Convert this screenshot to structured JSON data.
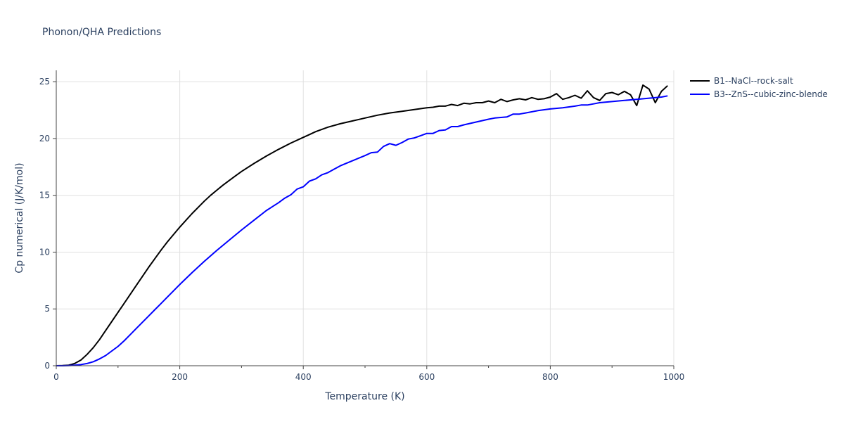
{
  "chart_data": {
    "type": "line",
    "title": "Phonon/QHA Predictions",
    "xlabel": "Temperature (K)",
    "ylabel": "Cp numerical (J/K/mol)",
    "xlim": [
      0,
      1000
    ],
    "ylim": [
      0,
      26
    ],
    "xticks": [
      0,
      200,
      400,
      600,
      800,
      1000
    ],
    "yticks": [
      0,
      5,
      10,
      15,
      20,
      25
    ],
    "grid": true,
    "legend_position": "top-right outside",
    "series": [
      {
        "name": "B1--NaCl--rock-salt",
        "color": "#000000",
        "x": [
          0,
          10,
          20,
          30,
          40,
          50,
          60,
          70,
          80,
          90,
          100,
          110,
          120,
          130,
          140,
          150,
          160,
          170,
          180,
          190,
          200,
          210,
          220,
          230,
          240,
          250,
          260,
          270,
          280,
          290,
          300,
          320,
          340,
          360,
          380,
          400,
          410,
          420,
          440,
          460,
          480,
          500,
          520,
          540,
          560,
          580,
          600,
          610,
          620,
          630,
          640,
          650,
          660,
          670,
          680,
          690,
          700,
          710,
          720,
          730,
          740,
          750,
          760,
          770,
          780,
          790,
          800,
          810,
          820,
          830,
          840,
          850,
          860,
          870,
          880,
          890,
          900,
          910,
          920,
          930,
          940,
          950,
          960,
          970,
          980,
          990
        ],
        "y": [
          0,
          0.02,
          0.05,
          0.2,
          0.5,
          1.0,
          1.6,
          2.3,
          3.1,
          3.9,
          4.7,
          5.5,
          6.3,
          7.1,
          7.9,
          8.7,
          9.45,
          10.2,
          10.9,
          11.55,
          12.2,
          12.8,
          13.4,
          13.95,
          14.5,
          15.0,
          15.45,
          15.9,
          16.3,
          16.7,
          17.1,
          17.8,
          18.45,
          19.05,
          19.6,
          20.1,
          20.35,
          20.6,
          21.0,
          21.3,
          21.55,
          21.8,
          22.05,
          22.25,
          22.4,
          22.55,
          22.7,
          22.75,
          22.85,
          22.85,
          23.0,
          22.9,
          23.1,
          23.05,
          23.15,
          23.15,
          23.3,
          23.15,
          23.45,
          23.25,
          23.4,
          23.5,
          23.4,
          23.6,
          23.45,
          23.5,
          23.65,
          23.95,
          23.45,
          23.6,
          23.8,
          23.55,
          24.2,
          23.6,
          23.35,
          23.95,
          24.05,
          23.85,
          24.15,
          23.85,
          22.9,
          24.7,
          24.35,
          23.15,
          24.15,
          24.65
        ]
      },
      {
        "name": "B3--ZnS--cubic-zinc-blende",
        "color": "#0000ff",
        "x": [
          0,
          10,
          20,
          30,
          40,
          50,
          60,
          70,
          80,
          90,
          100,
          110,
          120,
          130,
          140,
          150,
          160,
          170,
          180,
          190,
          200,
          220,
          240,
          260,
          280,
          300,
          320,
          340,
          350,
          360,
          370,
          380,
          390,
          400,
          410,
          420,
          430,
          440,
          450,
          460,
          480,
          500,
          510,
          520,
          530,
          540,
          550,
          560,
          570,
          580,
          590,
          600,
          610,
          620,
          630,
          640,
          650,
          660,
          680,
          700,
          710,
          720,
          730,
          740,
          750,
          760,
          780,
          800,
          820,
          840,
          850,
          860,
          870,
          880,
          900,
          920,
          940,
          960,
          980,
          990
        ],
        "y": [
          0,
          0,
          0.02,
          0.05,
          0.1,
          0.2,
          0.35,
          0.6,
          0.9,
          1.3,
          1.7,
          2.2,
          2.75,
          3.3,
          3.85,
          4.4,
          4.95,
          5.5,
          6.05,
          6.6,
          7.15,
          8.2,
          9.2,
          10.15,
          11.05,
          11.95,
          12.8,
          13.65,
          14.0,
          14.35,
          14.75,
          15.05,
          15.55,
          15.75,
          16.25,
          16.45,
          16.8,
          17.0,
          17.3,
          17.6,
          18.05,
          18.5,
          18.75,
          18.8,
          19.3,
          19.55,
          19.4,
          19.65,
          19.95,
          20.05,
          20.25,
          20.45,
          20.45,
          20.7,
          20.75,
          21.05,
          21.05,
          21.2,
          21.45,
          21.7,
          21.8,
          21.85,
          21.9,
          22.15,
          22.15,
          22.25,
          22.45,
          22.6,
          22.7,
          22.85,
          22.95,
          22.95,
          23.05,
          23.15,
          23.25,
          23.35,
          23.45,
          23.55,
          23.65,
          23.75
        ]
      }
    ]
  }
}
